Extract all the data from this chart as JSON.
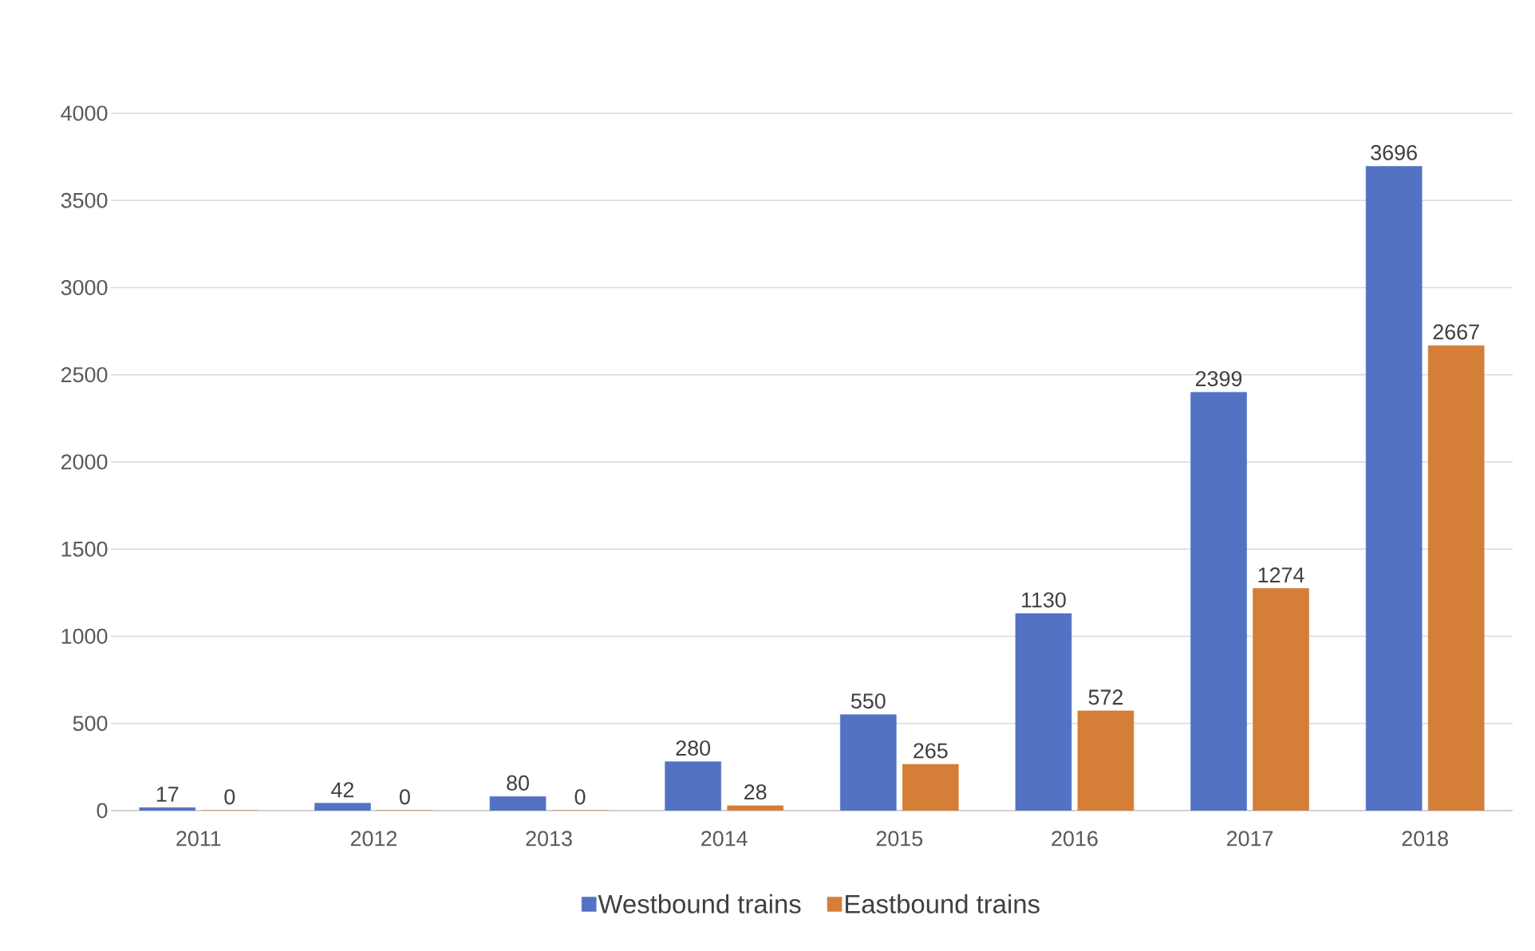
{
  "chart_data": {
    "type": "bar",
    "categories": [
      "2011",
      "2012",
      "2013",
      "2014",
      "2015",
      "2016",
      "2017",
      "2018"
    ],
    "series": [
      {
        "name": "Westbound trains",
        "color": "#5472c4",
        "values": [
          17,
          42,
          80,
          280,
          550,
          1130,
          2399,
          3696
        ]
      },
      {
        "name": "Eastbound trains",
        "color": "#d47e37",
        "values": [
          0,
          0,
          0,
          28,
          265,
          572,
          1274,
          2667
        ]
      }
    ],
    "ylim": [
      0,
      4000
    ],
    "yticks": [
      0,
      500,
      1000,
      1500,
      2000,
      2500,
      3000,
      3500,
      4000
    ],
    "data_labels": true,
    "grid": "y",
    "legend": "bottom"
  }
}
